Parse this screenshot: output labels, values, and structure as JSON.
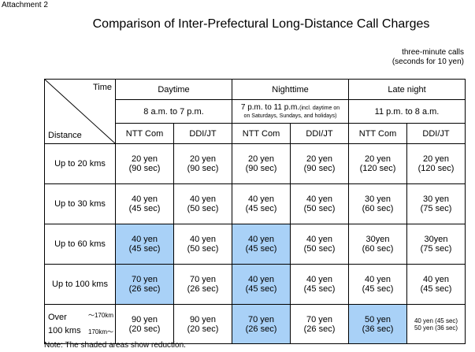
{
  "attachment": "Attachment 2",
  "title": "Comparison of Inter-Prefectural Long-Distance Call Charges",
  "note_lines": [
    "three-minute calls",
    "(seconds for 10 yen)"
  ],
  "header": {
    "time_label": "Time",
    "distance_label": "Distance",
    "periods": [
      {
        "name": "Daytime",
        "hours": "8 a.m. to 7 p.m."
      },
      {
        "name": "Nighttime",
        "hours": "7 p.m. to 11 p.m.",
        "hours_extra": "(incl. daytime on",
        "hours_extra2": "on Saturdays, Sundays, and holidays)"
      },
      {
        "name": "Late night",
        "hours": "11 p.m. to 8 a.m."
      }
    ],
    "carriers": [
      "NTT Com",
      "DDI/JT",
      "NTT Com",
      "DDI/JT",
      "NTT Com",
      "DDI/JT"
    ]
  },
  "rows": [
    {
      "label": "Up to 20 kms",
      "cells": [
        [
          "20 yen",
          "(90 sec)"
        ],
        [
          "20 yen",
          "(90 sec)"
        ],
        [
          "20 yen",
          "(90 sec)"
        ],
        [
          "20 yen",
          "(90 sec)"
        ],
        [
          "20 yen",
          "(120 sec)"
        ],
        [
          "20 yen",
          "(120 sec)"
        ]
      ]
    },
    {
      "label": "Up to 30 kms",
      "cells": [
        [
          "40 yen",
          "(45 sec)"
        ],
        [
          "40 yen",
          "(50 sec)"
        ],
        [
          "40 yen",
          "(45 sec)"
        ],
        [
          "40 yen",
          "(50 sec)"
        ],
        [
          "30 yen",
          "(60 sec)"
        ],
        [
          "30 yen",
          "(75 sec)"
        ]
      ]
    },
    {
      "label": "Up to 60 kms",
      "cells": [
        [
          "40 yen",
          "(45 sec)"
        ],
        [
          "40 yen",
          "(50 sec)"
        ],
        [
          "40 yen",
          "(45 sec)"
        ],
        [
          "40 yen",
          "(50 sec)"
        ],
        [
          "30yen",
          "(60 sec)"
        ],
        [
          "30yen",
          "(75 sec)"
        ]
      ]
    },
    {
      "label": "Up to 100 kms",
      "cells": [
        [
          "70 yen",
          "(26 sec)"
        ],
        [
          "70 yen",
          "(26 sec)"
        ],
        [
          "40 yen",
          "(45 sec)"
        ],
        [
          "40 yen",
          "(45 sec)"
        ],
        [
          "40 yen",
          "(45 sec)"
        ],
        [
          "40 yen",
          "(45 sec)"
        ]
      ]
    }
  ],
  "over_row": {
    "label_line1": "Over",
    "label_line2": "100 kms",
    "range1": "～170km",
    "range2": "170km～",
    "cells": [
      [
        "90 yen",
        "(20 sec)"
      ],
      [
        "90 yen",
        "(20 sec)"
      ],
      [
        "70 yen",
        "(26 sec)"
      ],
      [
        "70 yen",
        "(26 sec)"
      ],
      [
        "50 yen",
        "(36 sec)"
      ]
    ],
    "last_line1": "40 yen (45 sec)",
    "last_line2": "50 yen (36 sec)"
  },
  "footnote": "Note: The shaded areas show reduction.",
  "colors": {
    "shaded": "#a9d1f7"
  }
}
